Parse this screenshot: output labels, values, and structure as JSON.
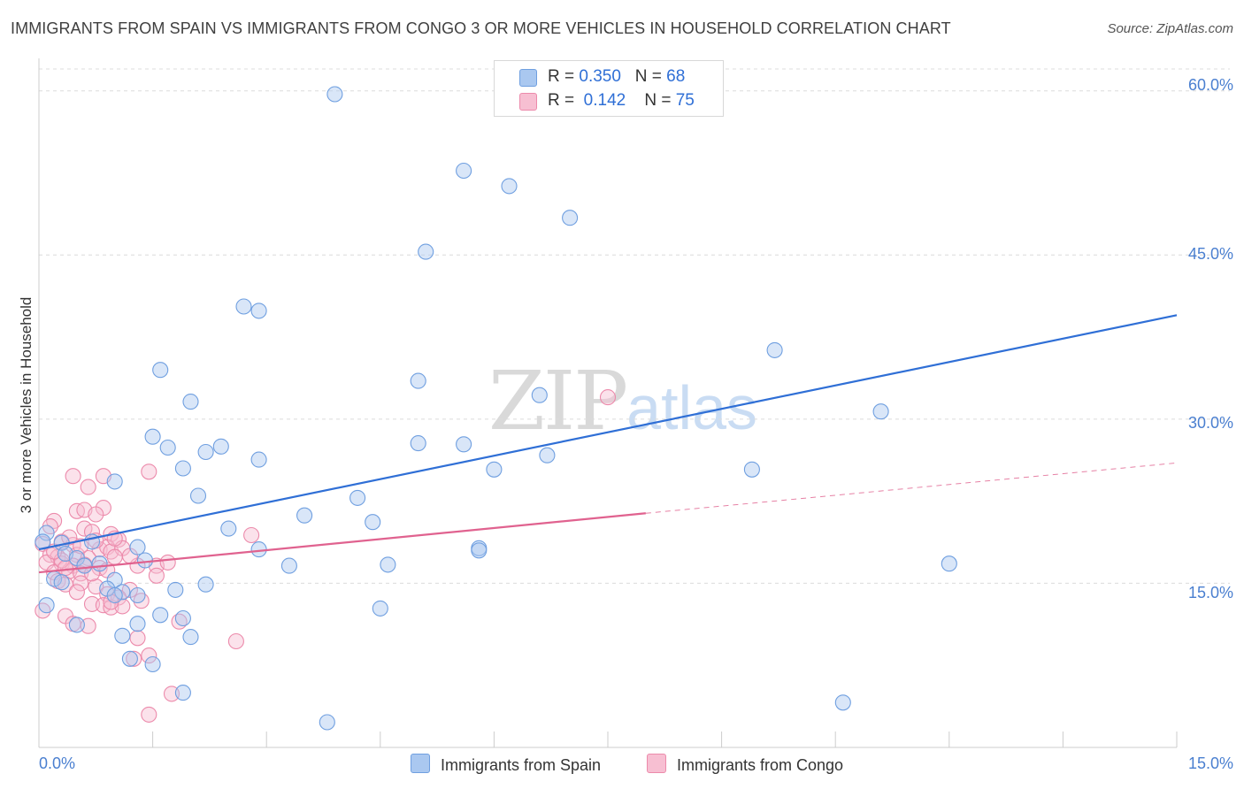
{
  "header": {
    "title": "IMMIGRANTS FROM SPAIN VS IMMIGRANTS FROM CONGO 3 OR MORE VEHICLES IN HOUSEHOLD CORRELATION CHART",
    "source": "Source: ZipAtlas.com"
  },
  "legend": {
    "spain": {
      "r_label": "R =",
      "r_value": "0.350",
      "n_label": "N =",
      "n_value": "68"
    },
    "congo": {
      "r_label": "R =",
      "r_value": "0.142",
      "n_label": "N =",
      "n_value": "75"
    }
  },
  "watermark": {
    "zip": "ZIP",
    "atlas": "atlas"
  },
  "colors": {
    "spain_fill": "#aac8f0",
    "spain_stroke": "#6f9fe0",
    "spain_line": "#2f6fd6",
    "congo_fill": "#f7bfd2",
    "congo_stroke": "#ec8aab",
    "congo_line": "#e0628f",
    "grid": "#dcdcdc",
    "tick_text": "#4a7fd0"
  },
  "chart_data": {
    "type": "scatter",
    "title": "IMMIGRANTS FROM SPAIN VS IMMIGRANTS FROM CONGO 3 OR MORE VEHICLES IN HOUSEHOLD CORRELATION CHART",
    "xlabel": "",
    "ylabel": "3 or more Vehicles in Household",
    "xlim": [
      0,
      15
    ],
    "ylim": [
      0,
      62
    ],
    "x_tick_labels": [
      "0.0%",
      "15.0%"
    ],
    "y_tick_values": [
      15,
      30,
      45,
      60
    ],
    "y_tick_labels": [
      "15.0%",
      "30.0%",
      "45.0%",
      "60.0%"
    ],
    "grid": "horizontal dashed",
    "legend_position": "top-center",
    "series": [
      {
        "name": "Immigrants from Spain",
        "r": 0.35,
        "n": 68,
        "trend": {
          "x": [
            0,
            15
          ],
          "y": [
            18.1,
            39.5
          ]
        },
        "points": [
          [
            3.9,
            59.7
          ],
          [
            5.6,
            52.7
          ],
          [
            6.2,
            51.3
          ],
          [
            7.0,
            48.4
          ],
          [
            5.1,
            45.3
          ],
          [
            2.7,
            40.3
          ],
          [
            2.9,
            39.9
          ],
          [
            9.7,
            36.3
          ],
          [
            1.6,
            34.5
          ],
          [
            5.0,
            33.5
          ],
          [
            6.6,
            32.2
          ],
          [
            2.0,
            31.6
          ],
          [
            11.1,
            30.7
          ],
          [
            1.5,
            28.4
          ],
          [
            5.0,
            27.8
          ],
          [
            5.6,
            27.7
          ],
          [
            1.7,
            27.4
          ],
          [
            2.4,
            27.5
          ],
          [
            2.2,
            27.0
          ],
          [
            2.9,
            26.3
          ],
          [
            6.7,
            26.7
          ],
          [
            1.9,
            25.5
          ],
          [
            6.0,
            25.4
          ],
          [
            9.4,
            25.4
          ],
          [
            1.0,
            24.3
          ],
          [
            2.1,
            23.0
          ],
          [
            4.2,
            22.8
          ],
          [
            3.5,
            21.2
          ],
          [
            4.4,
            20.6
          ],
          [
            2.5,
            20.0
          ],
          [
            0.1,
            19.6
          ],
          [
            0.05,
            18.8
          ],
          [
            0.3,
            18.7
          ],
          [
            0.7,
            18.8
          ],
          [
            1.3,
            18.3
          ],
          [
            2.9,
            18.1
          ],
          [
            5.8,
            18.2
          ],
          [
            5.8,
            18.0
          ],
          [
            0.35,
            17.7
          ],
          [
            0.5,
            17.3
          ],
          [
            1.4,
            17.1
          ],
          [
            3.3,
            16.6
          ],
          [
            4.6,
            16.7
          ],
          [
            12.0,
            16.8
          ],
          [
            0.6,
            16.6
          ],
          [
            0.8,
            16.8
          ],
          [
            0.2,
            15.4
          ],
          [
            0.3,
            15.1
          ],
          [
            1.0,
            15.3
          ],
          [
            2.2,
            14.9
          ],
          [
            0.9,
            14.5
          ],
          [
            1.1,
            14.2
          ],
          [
            1.0,
            13.9
          ],
          [
            1.3,
            13.9
          ],
          [
            1.8,
            14.4
          ],
          [
            0.1,
            13.0
          ],
          [
            4.5,
            12.7
          ],
          [
            1.6,
            12.1
          ],
          [
            1.9,
            11.8
          ],
          [
            0.5,
            11.2
          ],
          [
            1.3,
            11.3
          ],
          [
            1.1,
            10.2
          ],
          [
            2.0,
            10.1
          ],
          [
            1.2,
            8.1
          ],
          [
            1.5,
            7.6
          ],
          [
            1.9,
            5.0
          ],
          [
            10.6,
            4.1
          ],
          [
            3.8,
            2.3
          ]
        ]
      },
      {
        "name": "Immigrants from Congo",
        "r": 0.142,
        "n": 75,
        "trend": {
          "x": [
            0,
            8.0
          ],
          "y": [
            16.0,
            21.4
          ]
        },
        "trend_extension": {
          "x": [
            8.0,
            15
          ],
          "y": [
            21.4,
            26.0
          ]
        },
        "points": [
          [
            7.5,
            32.0
          ],
          [
            0.45,
            24.8
          ],
          [
            0.85,
            24.8
          ],
          [
            1.45,
            25.2
          ],
          [
            0.65,
            23.8
          ],
          [
            0.5,
            21.6
          ],
          [
            0.6,
            21.7
          ],
          [
            0.85,
            21.9
          ],
          [
            0.75,
            21.3
          ],
          [
            0.2,
            20.7
          ],
          [
            0.6,
            20.0
          ],
          [
            0.7,
            19.7
          ],
          [
            0.95,
            19.5
          ],
          [
            1.05,
            19.0
          ],
          [
            2.8,
            19.4
          ],
          [
            0.05,
            18.6
          ],
          [
            0.3,
            18.8
          ],
          [
            0.45,
            18.5
          ],
          [
            0.8,
            18.1
          ],
          [
            0.9,
            18.3
          ],
          [
            0.95,
            17.9
          ],
          [
            1.1,
            18.2
          ],
          [
            0.15,
            17.6
          ],
          [
            0.25,
            17.4
          ],
          [
            0.5,
            17.6
          ],
          [
            0.65,
            17.3
          ],
          [
            1.0,
            17.4
          ],
          [
            0.1,
            16.9
          ],
          [
            0.3,
            16.8
          ],
          [
            0.45,
            16.6
          ],
          [
            0.6,
            16.7
          ],
          [
            0.8,
            16.4
          ],
          [
            1.3,
            16.6
          ],
          [
            1.55,
            16.6
          ],
          [
            0.2,
            16.0
          ],
          [
            0.4,
            16.1
          ],
          [
            0.55,
            15.9
          ],
          [
            0.9,
            16.2
          ],
          [
            1.55,
            15.7
          ],
          [
            0.25,
            15.2
          ],
          [
            0.35,
            14.9
          ],
          [
            0.55,
            15.0
          ],
          [
            0.75,
            14.7
          ],
          [
            1.2,
            14.4
          ],
          [
            0.5,
            14.2
          ],
          [
            0.9,
            14.0
          ],
          [
            1.05,
            13.7
          ],
          [
            1.35,
            13.4
          ],
          [
            0.7,
            13.1
          ],
          [
            0.85,
            13.0
          ],
          [
            0.95,
            12.8
          ],
          [
            1.1,
            12.9
          ],
          [
            0.05,
            12.5
          ],
          [
            0.35,
            12.0
          ],
          [
            0.45,
            11.3
          ],
          [
            0.65,
            11.1
          ],
          [
            1.85,
            11.5
          ],
          [
            1.3,
            10.0
          ],
          [
            2.6,
            9.7
          ],
          [
            1.25,
            8.1
          ],
          [
            1.45,
            8.4
          ],
          [
            1.75,
            4.9
          ],
          [
            1.45,
            3.0
          ],
          [
            0.3,
            17.1
          ],
          [
            1.7,
            16.9
          ],
          [
            1.0,
            19.1
          ],
          [
            0.4,
            19.2
          ],
          [
            0.15,
            20.2
          ],
          [
            0.7,
            15.9
          ],
          [
            0.95,
            13.3
          ],
          [
            0.2,
            17.9
          ],
          [
            0.55,
            18.4
          ],
          [
            0.35,
            16.4
          ],
          [
            1.2,
            17.5
          ],
          [
            0.75,
            18.9
          ]
        ]
      }
    ]
  },
  "bottom_legend": {
    "spain": "Immigrants from Spain",
    "congo": "Immigrants from Congo"
  }
}
